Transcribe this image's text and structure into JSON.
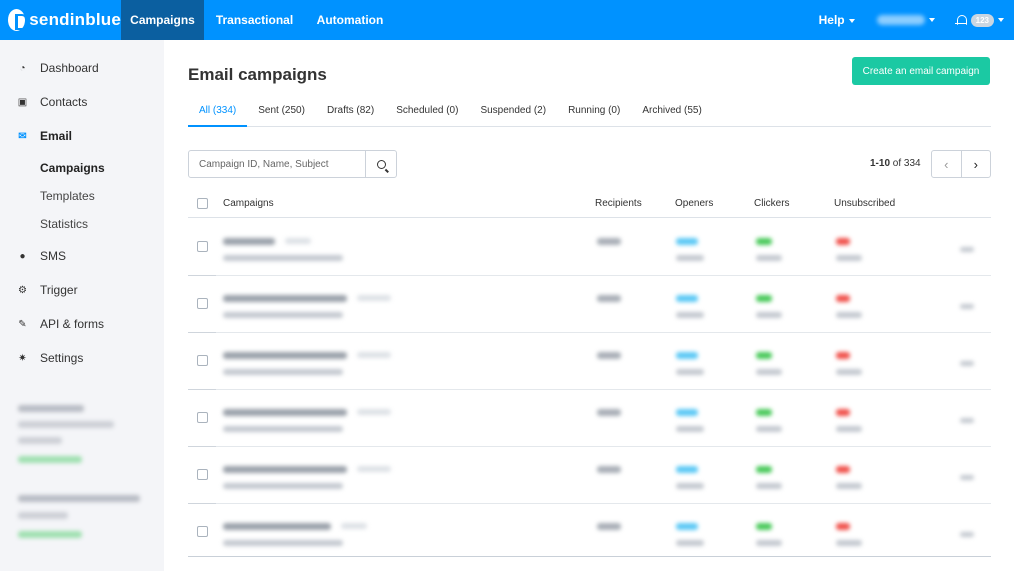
{
  "app": {
    "brand": "sendinblue",
    "nav": [
      {
        "label": "Campaigns",
        "active": true
      },
      {
        "label": "Transactional",
        "active": false
      },
      {
        "label": "Automation",
        "active": false
      }
    ],
    "help_label": "Help",
    "notification_count": "123"
  },
  "sidebar": {
    "items": [
      {
        "label": "Dashboard",
        "icon": "dashboard-icon"
      },
      {
        "label": "Contacts",
        "icon": "contacts-icon"
      },
      {
        "label": "Email",
        "icon": "email-icon"
      },
      {
        "label": "SMS",
        "icon": "sms-icon"
      },
      {
        "label": "Trigger",
        "icon": "trigger-icon"
      },
      {
        "label": "API & forms",
        "icon": "wrench-icon"
      },
      {
        "label": "Settings",
        "icon": "gear-icon"
      }
    ],
    "email_sub": [
      "Campaigns",
      "Templates",
      "Statistics"
    ]
  },
  "main": {
    "title": "Email campaigns",
    "create_button": "Create an email campaign",
    "tabs": [
      {
        "label": "All (334)",
        "active": true
      },
      {
        "label": "Sent (250)"
      },
      {
        "label": "Drafts (82)"
      },
      {
        "label": "Scheduled (0)"
      },
      {
        "label": "Suspended (2)"
      },
      {
        "label": "Running (0)"
      },
      {
        "label": "Archived (55)"
      }
    ],
    "search_placeholder": "Campaign ID, Name, Subject",
    "pagination": {
      "range": "1-10",
      "of_label": " of 334"
    },
    "columns": {
      "campaigns": "Campaigns",
      "recipients": "Recipients",
      "openers": "Openers",
      "clickers": "Clickers",
      "unsubscribed": "Unsubscribed"
    },
    "colors": {
      "accent": "#0092ff",
      "create": "#1bc9a3",
      "openers": "#5bc8f5",
      "clickers": "#49c95a",
      "unsubscribed": "#f0504a"
    }
  }
}
